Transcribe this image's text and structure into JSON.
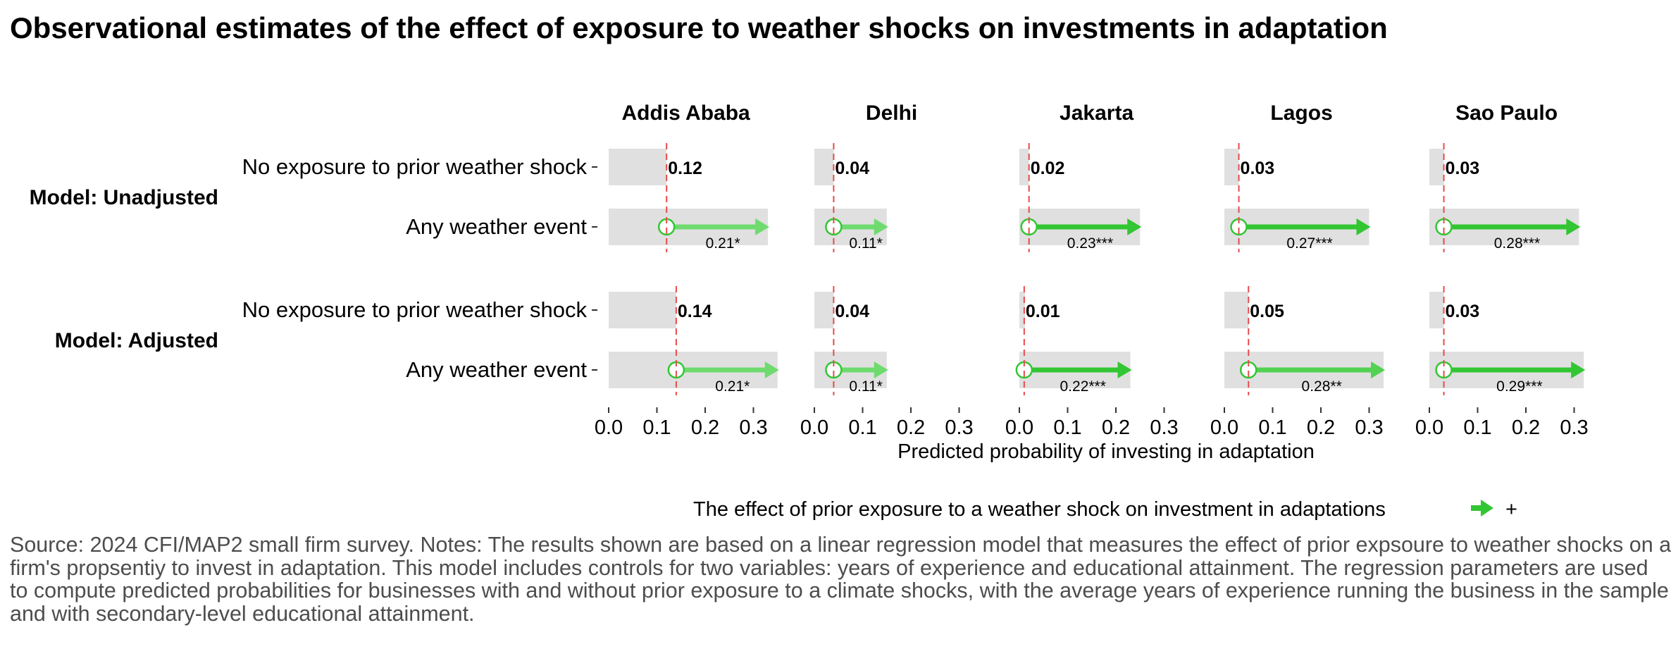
{
  "title": "Observational estimates of the effect of exposure to weather shocks on investments in adaptation",
  "chart_data": {
    "type": "bar",
    "xlabel": "Predicted probability of investing in adaptation",
    "xlim": [
      0,
      0.32
    ],
    "xticks": [
      "0.0",
      "0.1",
      "0.2",
      "0.3"
    ],
    "facets": [
      "Addis Ababa",
      "Delhi",
      "Jakarta",
      "Lagos",
      "Sao Paulo"
    ],
    "models": [
      "Model: Unadjusted",
      "Model: Adjusted"
    ],
    "categories": [
      "No exposure to prior weather shock",
      "Any weather event"
    ],
    "series": [
      {
        "model": "Model: Unadjusted",
        "no_exposure": [
          0.12,
          0.04,
          0.02,
          0.03,
          0.03
        ],
        "no_exposure_labels": [
          "0.12",
          "0.04",
          "0.02",
          "0.03",
          "0.03"
        ],
        "any_event": [
          0.33,
          0.15,
          0.25,
          0.3,
          0.31
        ],
        "effect_labels": [
          "0.21*",
          "0.11*",
          "0.23***",
          "0.27***",
          "0.28***"
        ],
        "effect_strength": [
          0.7,
          0.7,
          1,
          1,
          1
        ]
      },
      {
        "model": "Model: Adjusted",
        "no_exposure": [
          0.14,
          0.04,
          0.01,
          0.05,
          0.03
        ],
        "no_exposure_labels": [
          "0.14",
          "0.04",
          "0.01",
          "0.05",
          "0.03"
        ],
        "any_event": [
          0.35,
          0.15,
          0.23,
          0.33,
          0.32
        ],
        "effect_labels": [
          "0.21*",
          "0.11*",
          "0.22***",
          "0.28**",
          "0.29***"
        ],
        "effect_strength": [
          0.7,
          0.7,
          1,
          0.8,
          1
        ]
      }
    ],
    "colors": {
      "arrow_strong": "#33c633",
      "arrow_weak": "#6fdb6f",
      "bar": "#e0e0e0",
      "baseline_line": "#e84a4a",
      "marker_edge": "#33c633"
    },
    "legend": {
      "text": "The effect of prior exposure to a weather shock on investment in adaptations",
      "symbol": "+",
      "placement": "bottom"
    }
  },
  "source_note": "Source: 2024 CFI/MAP2 small firm survey. Notes: The results shown are based on a linear regression model that measures the effect of prior expsoure to weather shocks on a\nfirm's propsentiy to invest in adaptation. This model includes controls for two variables: years of experience and educational attainment. The regression parameters are used\nto compute predicted probabilities for businesses with and without prior exposure to a climate shocks, with the average years of experience running the business in the sample\nand with secondary-level educational attainment."
}
